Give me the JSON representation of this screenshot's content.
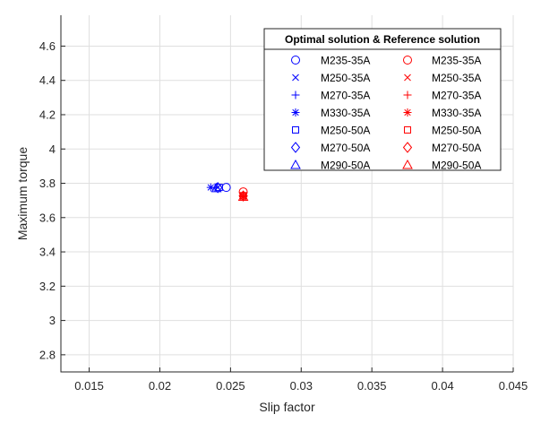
{
  "chart_data": {
    "type": "scatter",
    "xlabel": "Slip factor",
    "ylabel": "Maximum torque",
    "xlim": [
      0.013,
      0.045
    ],
    "ylim": [
      2.7,
      4.78
    ],
    "x_ticks": [
      0.015,
      0.02,
      0.025,
      0.03,
      0.035,
      0.04,
      0.045
    ],
    "x_tick_labels": [
      "0.015",
      "0.02",
      "0.025",
      "0.03",
      "0.035",
      "0.04",
      "0.045"
    ],
    "y_ticks": [
      2.8,
      3.0,
      3.2,
      3.4,
      3.6,
      3.8,
      4.0,
      4.2,
      4.4,
      4.6
    ],
    "y_tick_labels": [
      "2.8",
      "3",
      "3.2",
      "3.4",
      "3.6",
      "3.8",
      "4",
      "4.2",
      "4.4",
      "4.6"
    ],
    "grid": true,
    "legend_title": "Optimal solution & Reference solution",
    "legend_position": "top-right",
    "groups": [
      {
        "color": "#0000ff",
        "series": [
          {
            "name": "M235-35A",
            "marker": "circle",
            "x": 0.0247,
            "y": 3.776
          },
          {
            "name": "M250-35A",
            "marker": "x",
            "x": 0.0241,
            "y": 3.775
          },
          {
            "name": "M270-35A",
            "marker": "plus",
            "x": 0.0239,
            "y": 3.776
          },
          {
            "name": "M330-35A",
            "marker": "asterisk",
            "x": 0.0236,
            "y": 3.776
          },
          {
            "name": "M250-50A",
            "marker": "square",
            "x": 0.0242,
            "y": 3.776
          },
          {
            "name": "M270-50A",
            "marker": "diamond",
            "x": 0.0241,
            "y": 3.775
          },
          {
            "name": "M290-50A",
            "marker": "triangle",
            "x": 0.024,
            "y": 3.772
          }
        ]
      },
      {
        "color": "#ff0000",
        "series": [
          {
            "name": "M235-35A",
            "marker": "circle",
            "x": 0.0259,
            "y": 3.75
          },
          {
            "name": "M250-35A",
            "marker": "x",
            "x": 0.0259,
            "y": 3.726
          },
          {
            "name": "M270-35A",
            "marker": "plus",
            "x": 0.0259,
            "y": 3.728
          },
          {
            "name": "M330-35A",
            "marker": "asterisk",
            "x": 0.0259,
            "y": 3.722
          },
          {
            "name": "M250-50A",
            "marker": "square",
            "x": 0.0259,
            "y": 3.728
          },
          {
            "name": "M270-50A",
            "marker": "diamond",
            "x": 0.0259,
            "y": 3.726
          },
          {
            "name": "M290-50A",
            "marker": "triangle",
            "x": 0.0259,
            "y": 3.722
          }
        ]
      }
    ]
  }
}
